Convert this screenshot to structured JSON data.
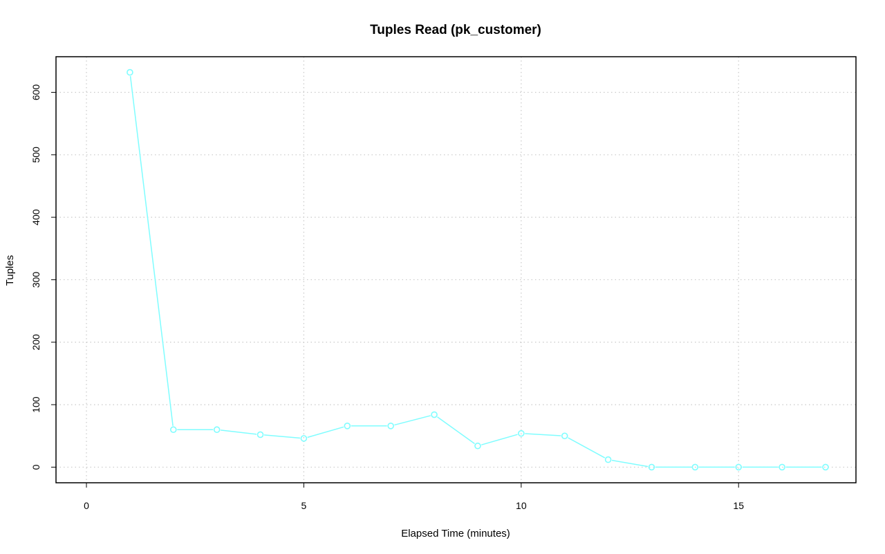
{
  "chart_data": {
    "type": "line",
    "title": "Tuples Read (pk_customer)",
    "xlabel": "Elapsed Time (minutes)",
    "ylabel": "Tuples",
    "xlim": [
      -0.7,
      17.7
    ],
    "ylim": [
      -25,
      657
    ],
    "x_ticks": [
      0,
      5,
      10,
      15
    ],
    "y_ticks": [
      0,
      100,
      200,
      300,
      400,
      500,
      600
    ],
    "grid": true,
    "legend": "none",
    "series": [
      {
        "color": "#7ffdff",
        "marker": "open-circle",
        "x": [
          1,
          2,
          3,
          4,
          5,
          6,
          7,
          8,
          9,
          10,
          11,
          12,
          13,
          14,
          15,
          16,
          17
        ],
        "y": [
          632,
          60,
          60,
          52,
          46,
          66,
          66,
          84,
          34,
          54,
          50,
          12,
          0,
          0,
          0,
          0,
          0
        ]
      }
    ]
  }
}
